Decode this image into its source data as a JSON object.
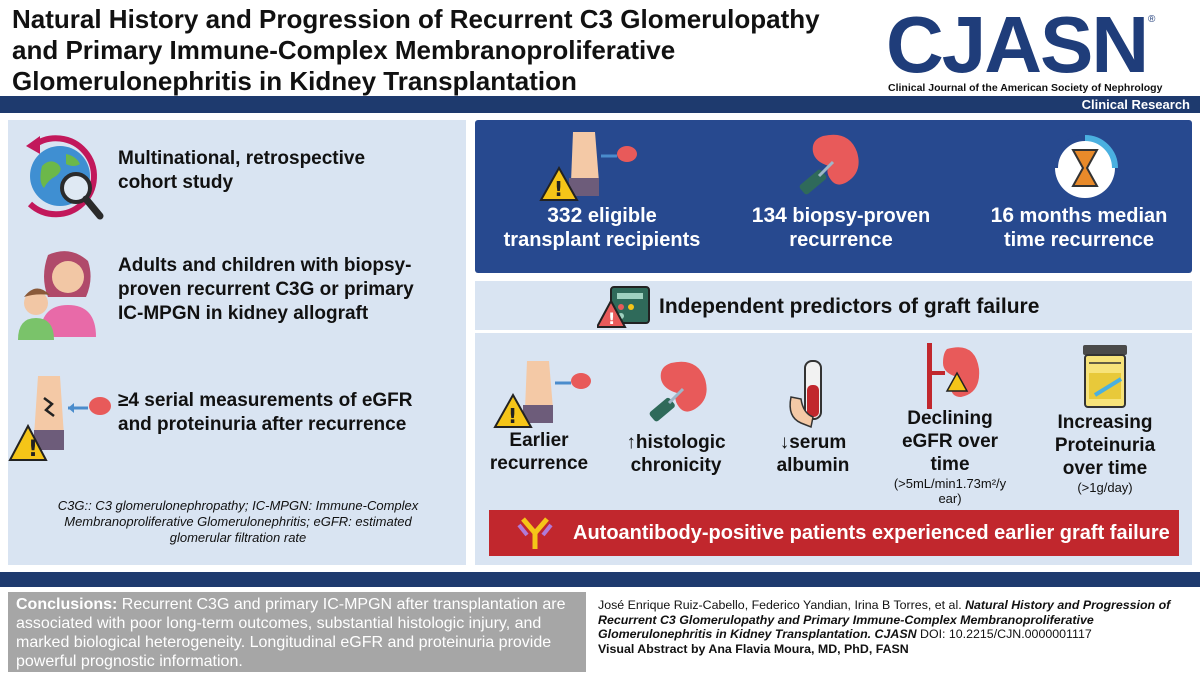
{
  "header": {
    "title_line1": "Natural History and Progression of Recurrent C3 Glomerulopathy",
    "title_line2": "and Primary Immune-Complex Membranoproliferative",
    "title_line3": "Glomerulonephritis in Kidney Transplantation",
    "logo_text": "CJASN",
    "logo_reg": "®",
    "logo_subtitle": "Clinical Journal of the American Society of Nephrology",
    "section_label": "Clinical Research"
  },
  "study": {
    "design_line1": "Multinational, retrospective",
    "design_line2": "cohort study",
    "population_line1": "Adults and children with biopsy-",
    "population_line2": "proven recurrent C3G or primary",
    "population_line3": "IC-MPGN in kidney allograft",
    "measure_line1": "≥4 serial measurements of eGFR",
    "measure_line2": "and proteinuria after recurrence",
    "footnote_line1": "C3G:: C3 glomerulonephropathy; IC-MPGN: Immune-Complex",
    "footnote_line2": "Membranoproliferative Glomerulonephritis; eGFR: estimated",
    "footnote_line3": "glomerular filtration rate"
  },
  "stats": {
    "s1_num": "332",
    "s1_rest": " eligible",
    "s1_line2": "transplant recipients",
    "s2_num": "134",
    "s2_rest": " biopsy-proven",
    "s2_line2": "recurrence",
    "s3_num": "16",
    "s3_rest": " months median",
    "s3_line2": "time recurrence"
  },
  "predictors": {
    "heading": "Independent predictors of graft failure",
    "p1_line1": "Earlier",
    "p1_line2": "recurrence",
    "p2_line1": "↑histologic",
    "p2_line2": "chronicity",
    "p3_line1": "↓serum",
    "p3_line2": "albumin",
    "p4_line1": "Declining",
    "p4_line2": "eGFR over",
    "p4_line3": "time",
    "p4_note1": "(>5mL/min1.73m²/y",
    "p4_note2": "ear)",
    "p5_line1": "Increasing",
    "p5_line2": "Proteinuria",
    "p5_line3": "over time",
    "p5_note": "(>1g/day)",
    "autoantibody": "Autoantibody-positive patients experienced earlier graft failure"
  },
  "conclusions": {
    "label": "Conclusions:",
    "text": " Recurrent C3G and primary IC-MPGN after transplantation are associated with poor long-term outcomes, substantial histologic injury, and marked biological heterogeneity. Longitudinal eGFR and proteinuria provide powerful prognostic information."
  },
  "citation": {
    "authors": "José Enrique Ruiz-Cabello, Federico Yandian, Irina B Torres, et al. ",
    "article_title": "Natural History and Progression of Recurrent C3 Glomerulopathy and Primary Immune-Complex Membranoproliferative Glomerulonephritis in Kidney Transplantation.",
    "journal": " CJASN",
    "doi": " DOI: 10.2215/CJN.0000001117",
    "byline": "Visual Abstract by Ana Flavia Moura, MD, PhD, FASN"
  },
  "colors": {
    "navy": "#1e3a6e",
    "blue_box": "#27498f",
    "light_panel": "#d9e4f2",
    "red_bar": "#c1272d",
    "gray_box": "#a6a6a6"
  }
}
